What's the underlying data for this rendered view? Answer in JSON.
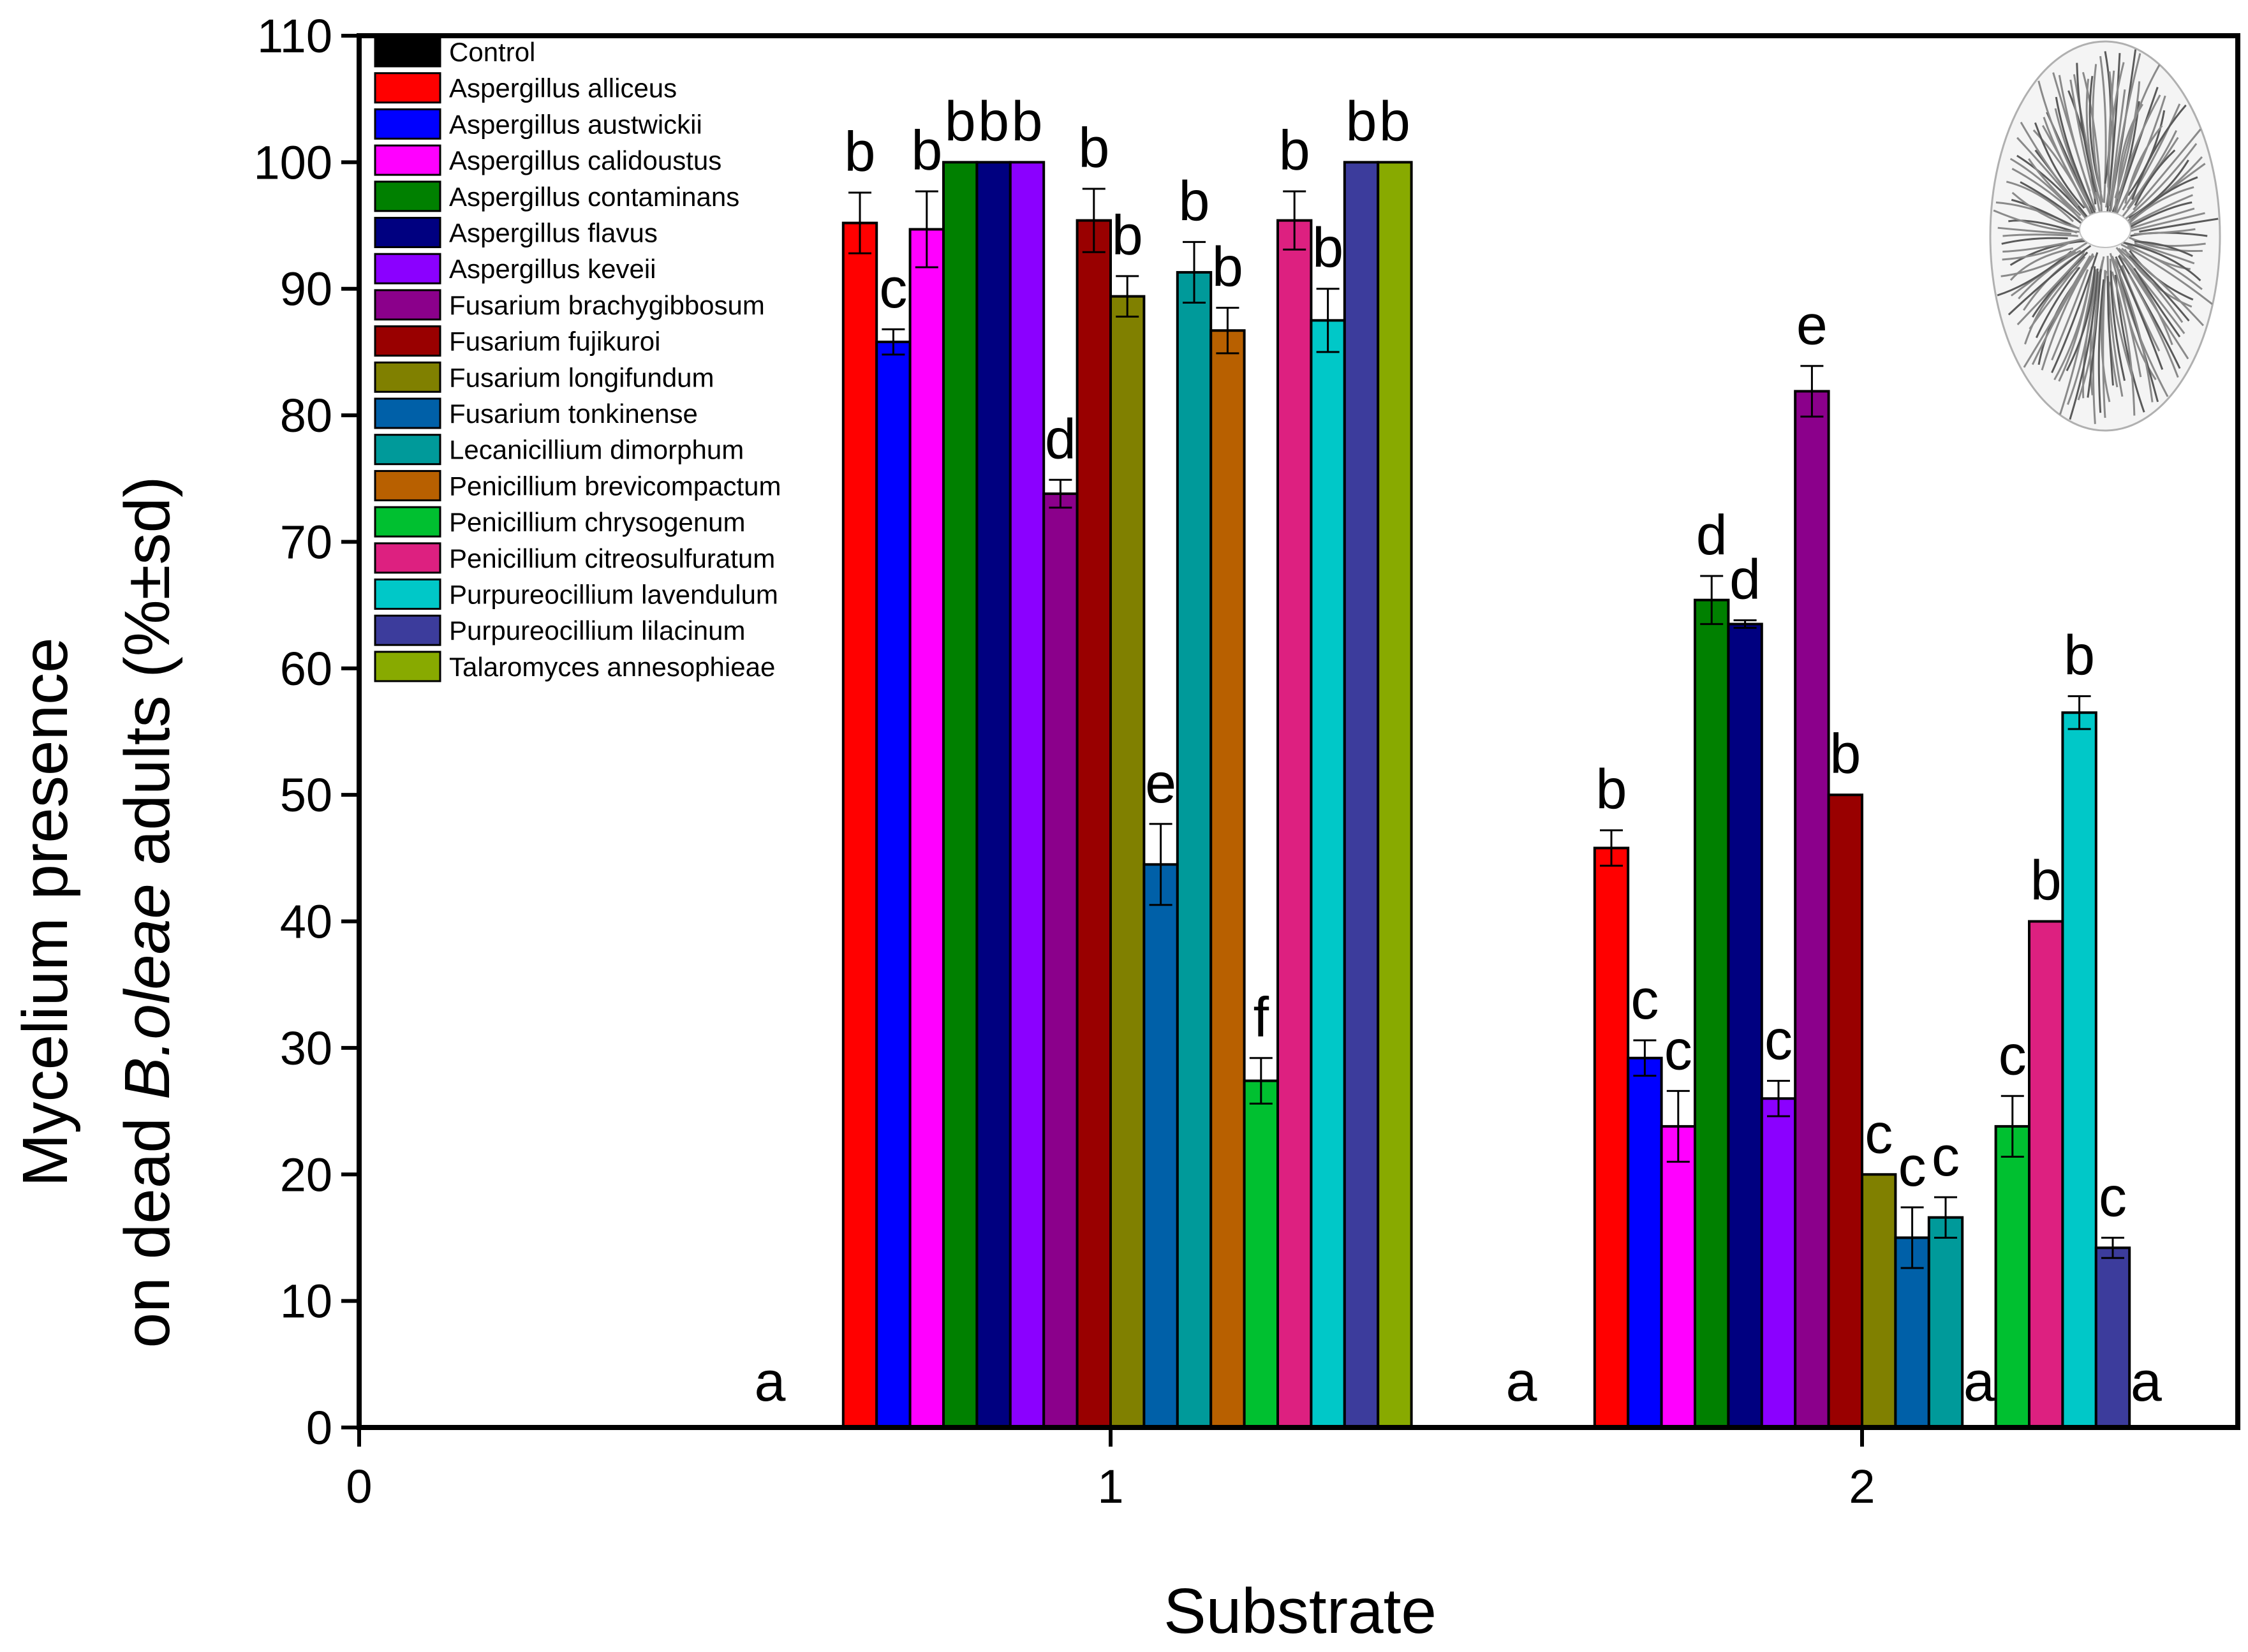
{
  "chart_data": {
    "type": "bar",
    "title": "",
    "xlabel": "Substrate",
    "ylabel_line1": "Mycelium presence",
    "ylabel_line2_prefix": "on dead ",
    "ylabel_line2_species": "B.oleae",
    "ylabel_line2_suffix": " adults (%±sd)",
    "xlim": [
      0,
      2.5
    ],
    "ylim": [
      0,
      110
    ],
    "x_ticks": [
      0,
      1,
      2
    ],
    "x_tick_labels": [
      "0",
      "1",
      "2"
    ],
    "y_ticks": [
      0,
      10,
      20,
      30,
      40,
      50,
      60,
      70,
      80,
      90,
      100,
      110
    ],
    "y_tick_labels": [
      "0",
      "10",
      "20",
      "30",
      "40",
      "50",
      "60",
      "70",
      "80",
      "90",
      "100",
      "110"
    ],
    "legend_position": "top-left",
    "categories": [
      "1",
      "2"
    ],
    "series": [
      {
        "name": "Control",
        "color": "#000000",
        "values": [
          0,
          0
        ],
        "sd": [
          0,
          0
        ],
        "sig": [
          "a",
          "a"
        ]
      },
      {
        "name": "Aspergillus alliceus",
        "color": "#ff0000",
        "values": [
          95.2,
          45.8
        ],
        "sd": [
          2.4,
          1.4
        ],
        "sig": [
          "b",
          "b"
        ]
      },
      {
        "name": "Aspergillus austwickii",
        "color": "#0000ff",
        "values": [
          85.8,
          29.2
        ],
        "sd": [
          1.0,
          1.4
        ],
        "sig": [
          "c",
          "c"
        ]
      },
      {
        "name": "Aspergillus calidoustus",
        "color": "#ff00ff",
        "values": [
          94.7,
          23.8
        ],
        "sd": [
          3.0,
          2.8
        ],
        "sig": [
          "b",
          "c"
        ]
      },
      {
        "name": "Aspergillus contaminans",
        "color": "#008000",
        "values": [
          100,
          65.4
        ],
        "sd": [
          0,
          1.9
        ],
        "sig": [
          "b",
          "d"
        ]
      },
      {
        "name": "Aspergillus flavus",
        "color": "#000080",
        "values": [
          100,
          63.5
        ],
        "sd": [
          0,
          0.3
        ],
        "sig": [
          "b",
          "d"
        ]
      },
      {
        "name": "Aspergillus keveii",
        "color": "#8b00ff",
        "values": [
          100,
          26.0
        ],
        "sd": [
          0,
          1.4
        ],
        "sig": [
          "b",
          "c"
        ]
      },
      {
        "name": "Fusarium brachygibbosum",
        "color": "#8b008b",
        "values": [
          73.8,
          81.9
        ],
        "sd": [
          1.1,
          2.0
        ],
        "sig": [
          "d",
          "e"
        ]
      },
      {
        "name": "Fusarium fujikuroi",
        "color": "#990000",
        "values": [
          95.4,
          50.0
        ],
        "sd": [
          2.5,
          0
        ],
        "sig": [
          "b",
          "b"
        ]
      },
      {
        "name": "Fusarium longifundum",
        "color": "#808000",
        "values": [
          89.4,
          20.0
        ],
        "sd": [
          1.6,
          0
        ],
        "sig": [
          "b",
          "c"
        ]
      },
      {
        "name": "Fusarium tonkinense",
        "color": "#0060a8",
        "values": [
          44.5,
          15.0
        ],
        "sd": [
          3.2,
          2.4
        ],
        "sig": [
          "e",
          "c"
        ]
      },
      {
        "name": "Lecanicillium dimorphum",
        "color": "#009a9a",
        "values": [
          91.3,
          16.6
        ],
        "sd": [
          2.4,
          1.6
        ],
        "sig": [
          "b",
          "c"
        ]
      },
      {
        "name": "Penicillium brevicompactum",
        "color": "#b86000",
        "values": [
          86.7,
          0
        ],
        "sd": [
          1.8,
          0
        ],
        "sig": [
          "b",
          "a"
        ]
      },
      {
        "name": "Penicillium chrysogenum",
        "color": "#00c030",
        "values": [
          27.4,
          23.8
        ],
        "sd": [
          1.8,
          2.4
        ],
        "sig": [
          "f",
          "c"
        ]
      },
      {
        "name": "Penicillium citreosulfuratum",
        "color": "#dd2080",
        "values": [
          95.4,
          40.0
        ],
        "sd": [
          2.3,
          0
        ],
        "sig": [
          "b",
          "b"
        ]
      },
      {
        "name": "Purpureocillium lavendulum",
        "color": "#00c8c8",
        "values": [
          87.5,
          56.5
        ],
        "sd": [
          2.5,
          1.3
        ],
        "sig": [
          "b",
          "b"
        ]
      },
      {
        "name": "Purpureocillium lilacinum",
        "color": "#3c3c9c",
        "values": [
          100,
          14.2
        ],
        "sd": [
          0,
          0.8
        ],
        "sig": [
          "b",
          "c"
        ]
      },
      {
        "name": "Talaromyces annesophieae",
        "color": "#88aa00",
        "values": [
          100,
          0
        ],
        "sd": [
          0,
          0
        ],
        "sig": [
          "b",
          "a"
        ]
      }
    ]
  }
}
